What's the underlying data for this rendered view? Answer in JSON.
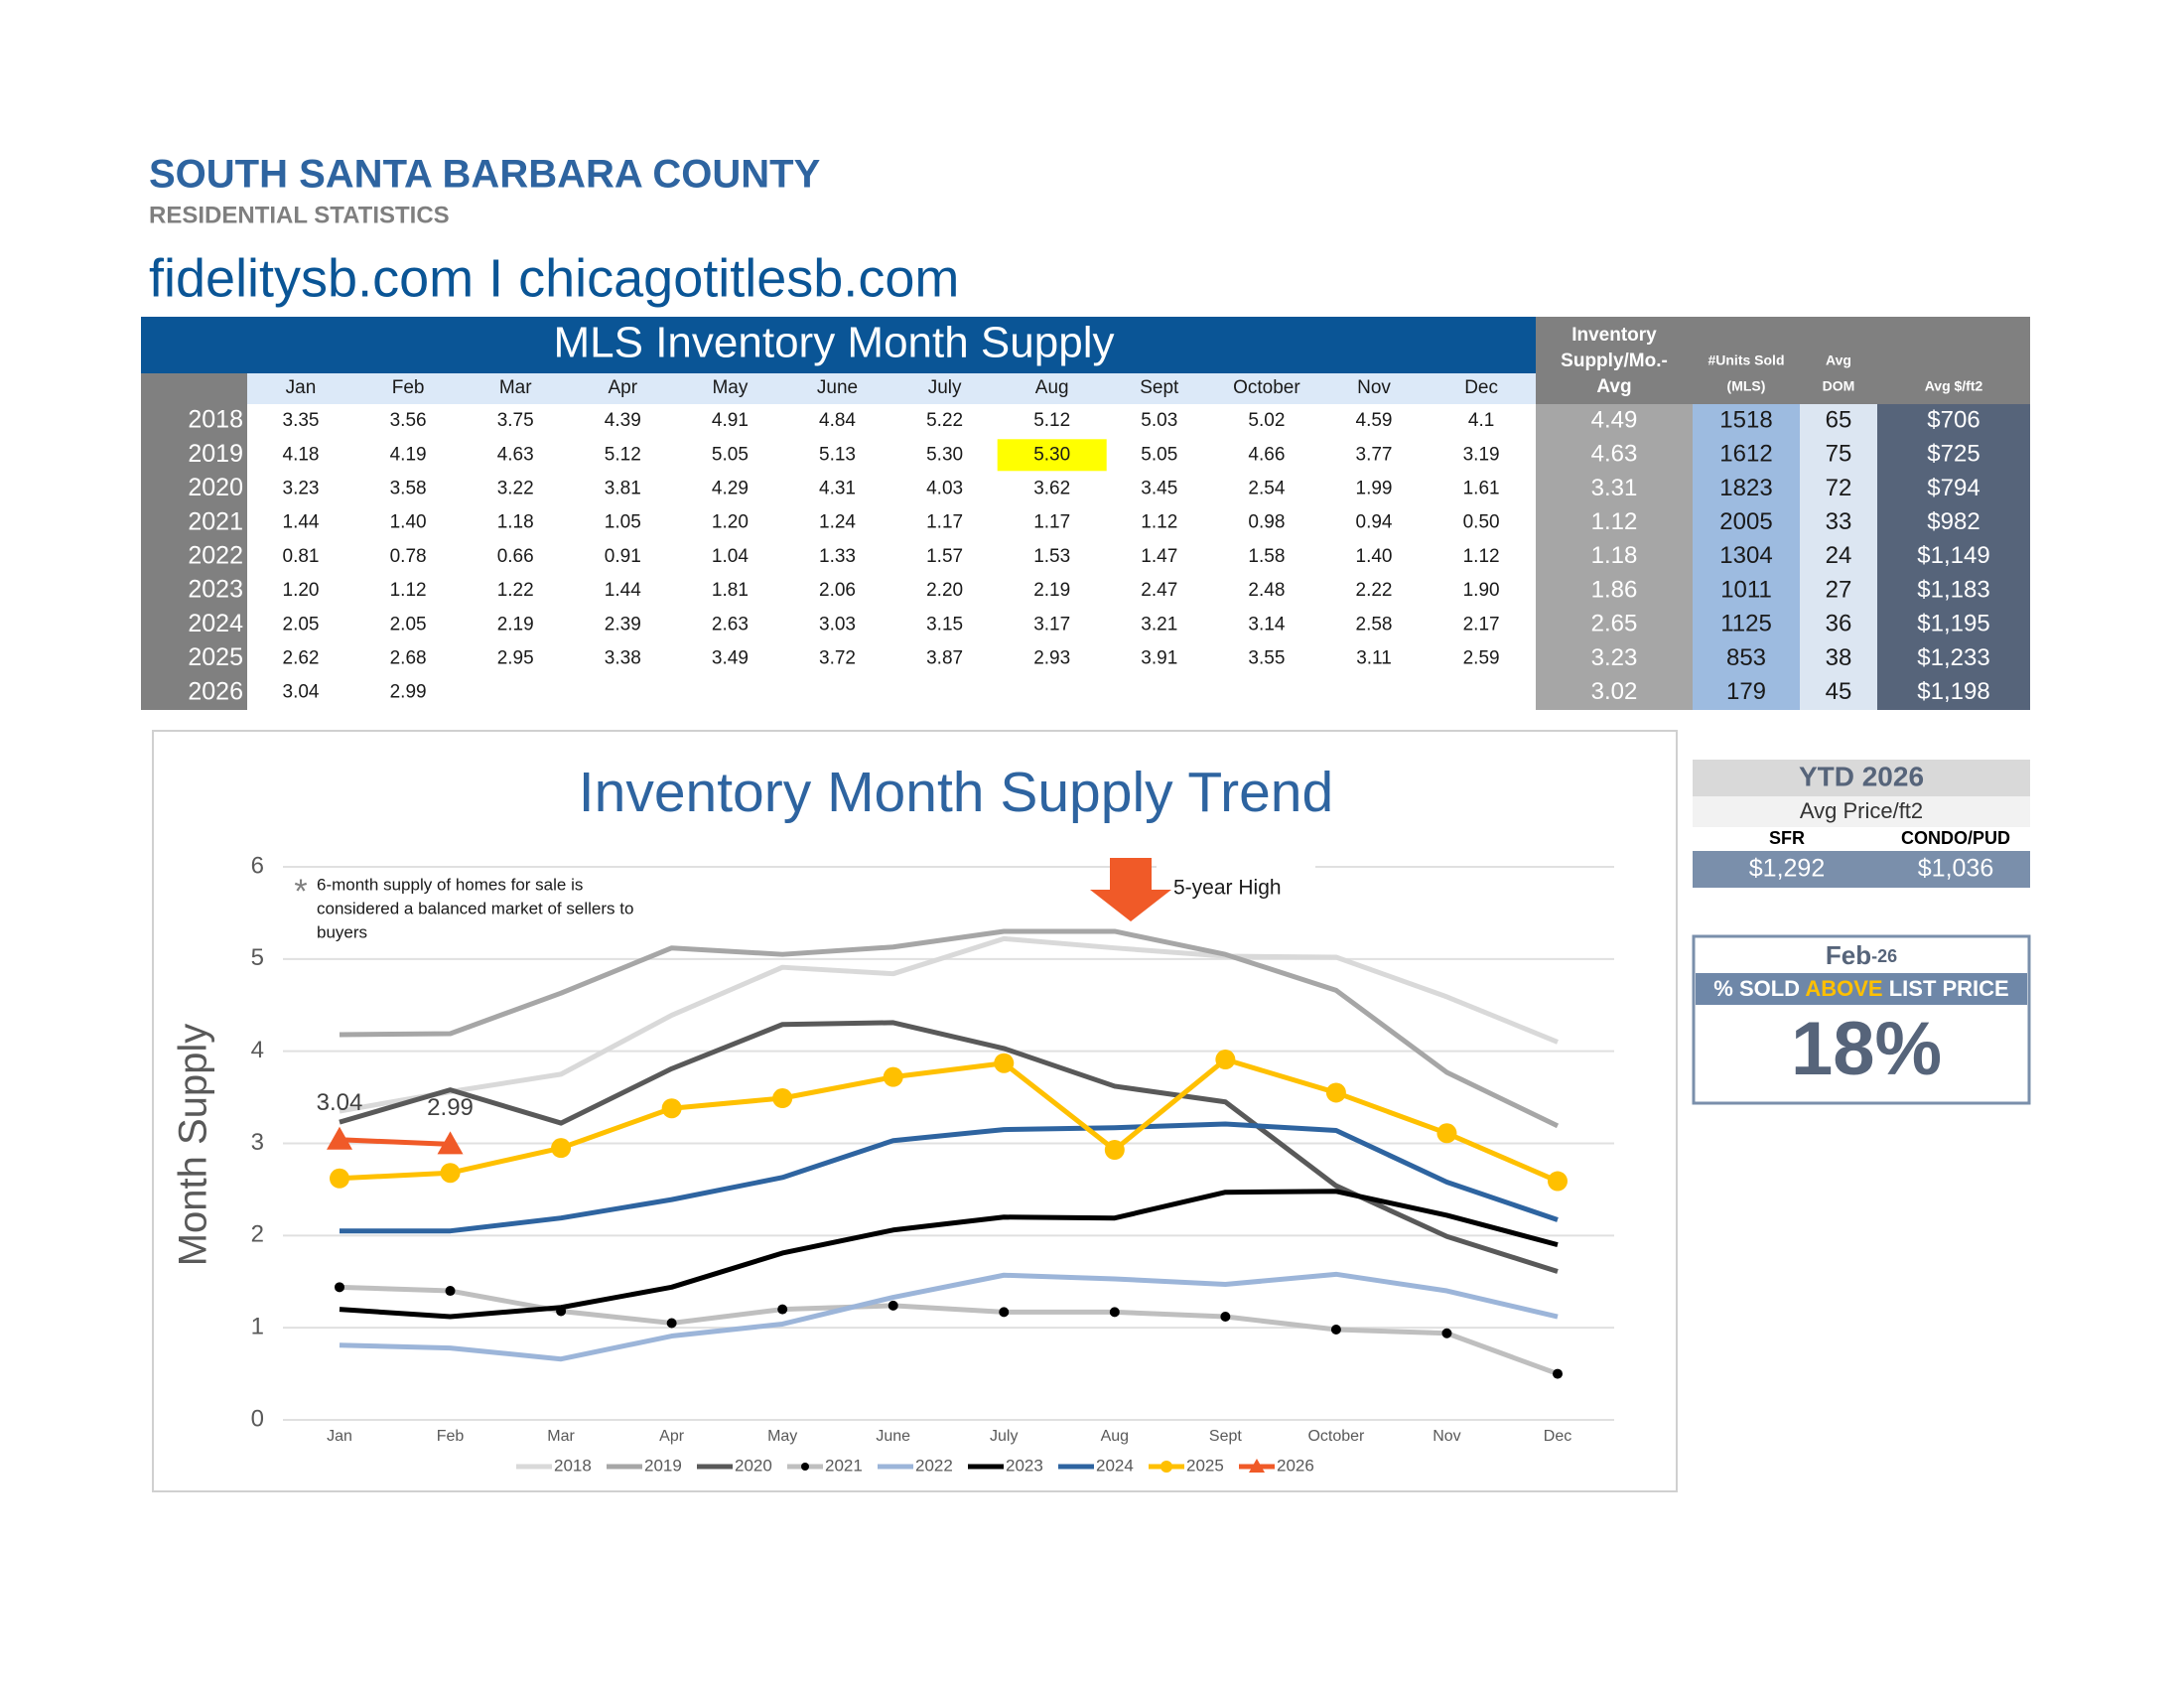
{
  "header": {
    "title": "SOUTH SANTA BARBARA COUNTY",
    "subtitle": "RESIDENTIAL STATISTICS",
    "links": "fidelitysb.com I chicagotitlesb.com"
  },
  "table": {
    "title": "MLS Inventory Month Supply",
    "months": [
      "Jan",
      "Feb",
      "Mar",
      "Apr",
      "May",
      "June",
      "July",
      "Aug",
      "Sept",
      "October",
      "Nov",
      "Dec"
    ],
    "side_headers": [
      [
        "Inventory",
        "Supply/Mo.-",
        "Avg"
      ],
      [
        "#Units Sold",
        "(MLS)"
      ],
      [
        "Avg",
        "DOM"
      ],
      [
        "Avg $/ft2"
      ]
    ],
    "highlight_cell": {
      "row": 1,
      "col": 7,
      "color": "#ffff00"
    },
    "rows": [
      {
        "year": "2018",
        "values": [
          "3.35",
          "3.56",
          "3.75",
          "4.39",
          "4.91",
          "4.84",
          "5.22",
          "5.12",
          "5.03",
          "5.02",
          "4.59",
          "4.1"
        ],
        "side": [
          "4.49",
          "1518",
          "65",
          "$706"
        ]
      },
      {
        "year": "2019",
        "values": [
          "4.18",
          "4.19",
          "4.63",
          "5.12",
          "5.05",
          "5.13",
          "5.30",
          "5.30",
          "5.05",
          "4.66",
          "3.77",
          "3.19"
        ],
        "side": [
          "4.63",
          "1612",
          "75",
          "$725"
        ]
      },
      {
        "year": "2020",
        "values": [
          "3.23",
          "3.58",
          "3.22",
          "3.81",
          "4.29",
          "4.31",
          "4.03",
          "3.62",
          "3.45",
          "2.54",
          "1.99",
          "1.61"
        ],
        "side": [
          "3.31",
          "1823",
          "72",
          "$794"
        ]
      },
      {
        "year": "2021",
        "values": [
          "1.44",
          "1.40",
          "1.18",
          "1.05",
          "1.20",
          "1.24",
          "1.17",
          "1.17",
          "1.12",
          "0.98",
          "0.94",
          "0.50"
        ],
        "side": [
          "1.12",
          "2005",
          "33",
          "$982"
        ]
      },
      {
        "year": "2022",
        "values": [
          "0.81",
          "0.78",
          "0.66",
          "0.91",
          "1.04",
          "1.33",
          "1.57",
          "1.53",
          "1.47",
          "1.58",
          "1.40",
          "1.12"
        ],
        "side": [
          "1.18",
          "1304",
          "24",
          "$1,149"
        ]
      },
      {
        "year": "2023",
        "values": [
          "1.20",
          "1.12",
          "1.22",
          "1.44",
          "1.81",
          "2.06",
          "2.20",
          "2.19",
          "2.47",
          "2.48",
          "2.22",
          "1.90"
        ],
        "side": [
          "1.86",
          "1011",
          "27",
          "$1,183"
        ]
      },
      {
        "year": "2024",
        "values": [
          "2.05",
          "2.05",
          "2.19",
          "2.39",
          "2.63",
          "3.03",
          "3.15",
          "3.17",
          "3.21",
          "3.14",
          "2.58",
          "2.17"
        ],
        "side": [
          "2.65",
          "1125",
          "36",
          "$1,195"
        ]
      },
      {
        "year": "2025",
        "values": [
          "2.62",
          "2.68",
          "2.95",
          "3.38",
          "3.49",
          "3.72",
          "3.87",
          "2.93",
          "3.91",
          "3.55",
          "3.11",
          "2.59"
        ],
        "side": [
          "3.23",
          "853",
          "38",
          "$1,233"
        ]
      },
      {
        "year": "2026",
        "values": [
          "3.04",
          "2.99"
        ],
        "side": [
          "3.02",
          "179",
          "45",
          "$1,198"
        ]
      }
    ]
  },
  "chart_data": {
    "type": "line",
    "title": "Inventory Month Supply Trend",
    "y_label": "Month Supply",
    "note_star": "*",
    "note": [
      "6-month supply of homes for sale is",
      "considered a balanced market of sellers to",
      "buyers"
    ],
    "annotation": "5-year High",
    "categories": [
      "Jan",
      "Feb",
      "Mar",
      "Apr",
      "May",
      "June",
      "July",
      "Aug",
      "Sept",
      "October",
      "Nov",
      "Dec"
    ],
    "ylim": [
      0,
      6
    ],
    "yticks": [
      0,
      1,
      2,
      3,
      4,
      5,
      6
    ],
    "grid": true,
    "series": [
      {
        "name": "2018",
        "color": "#d9d9d9",
        "values": [
          3.35,
          3.56,
          3.75,
          4.39,
          4.91,
          4.84,
          5.22,
          5.12,
          5.03,
          5.02,
          4.59,
          4.1
        ]
      },
      {
        "name": "2019",
        "color": "#a6a6a6",
        "values": [
          4.18,
          4.19,
          4.63,
          5.12,
          5.05,
          5.13,
          5.3,
          5.3,
          5.05,
          4.66,
          3.77,
          3.19
        ]
      },
      {
        "name": "2020",
        "color": "#595959",
        "values": [
          3.23,
          3.58,
          3.22,
          3.81,
          4.29,
          4.31,
          4.03,
          3.62,
          3.45,
          2.54,
          1.99,
          1.61
        ]
      },
      {
        "name": "2021",
        "color": "#bfbfbf",
        "marker": "dot",
        "marker_color": "#000000",
        "values": [
          1.44,
          1.4,
          1.18,
          1.05,
          1.2,
          1.24,
          1.17,
          1.17,
          1.12,
          0.98,
          0.94,
          0.5
        ]
      },
      {
        "name": "2022",
        "color": "#9cb5d9",
        "values": [
          0.81,
          0.78,
          0.66,
          0.91,
          1.04,
          1.33,
          1.57,
          1.53,
          1.47,
          1.58,
          1.4,
          1.12
        ]
      },
      {
        "name": "2023",
        "color": "#000000",
        "values": [
          1.2,
          1.12,
          1.22,
          1.44,
          1.81,
          2.06,
          2.2,
          2.19,
          2.47,
          2.48,
          2.22,
          1.9
        ]
      },
      {
        "name": "2024",
        "color": "#2e64a0",
        "values": [
          2.05,
          2.05,
          2.19,
          2.39,
          2.63,
          3.03,
          3.15,
          3.17,
          3.21,
          3.14,
          2.58,
          2.17
        ]
      },
      {
        "name": "2025",
        "color": "#ffc000",
        "marker": "circle",
        "marker_color": "#ffc000",
        "values": [
          2.62,
          2.68,
          2.95,
          3.38,
          3.49,
          3.72,
          3.87,
          2.93,
          3.91,
          3.55,
          3.11,
          2.59
        ]
      },
      {
        "name": "2026",
        "color": "#f05a28",
        "marker": "triangle",
        "marker_color": "#f05a28",
        "data_labels": true,
        "values": [
          3.04,
          2.99,
          null,
          null,
          null,
          null,
          null,
          null,
          null,
          null,
          null,
          null
        ]
      }
    ]
  },
  "ytd": {
    "title": "YTD 2026",
    "subtitle": "Avg Price/ft2",
    "labels": [
      "SFR",
      "CONDO/PUD"
    ],
    "values": [
      "$1,292",
      "$1,036"
    ]
  },
  "sold_above": {
    "month": "Feb",
    "year_suffix": "-26",
    "label_parts": [
      "% SOLD ",
      "ABOVE",
      " LIST PRICE"
    ],
    "value": "18%"
  }
}
